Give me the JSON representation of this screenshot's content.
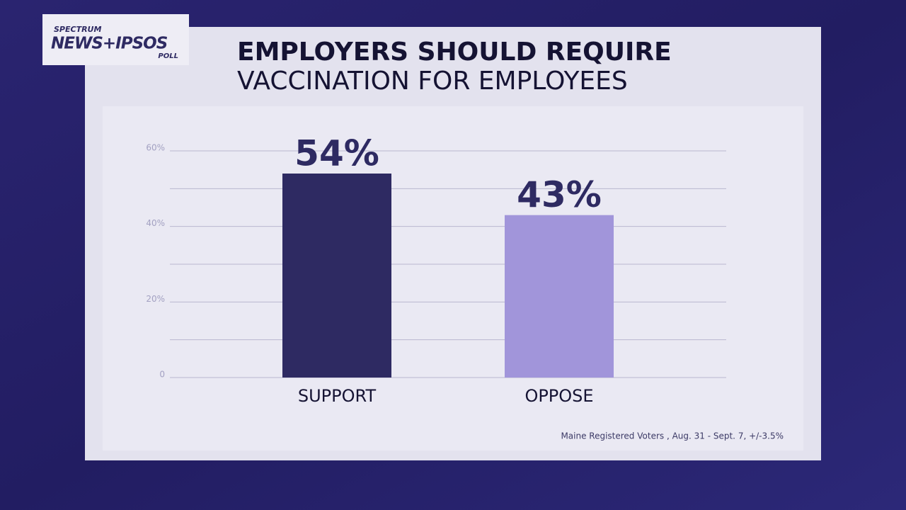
{
  "logo": {
    "top": "SPECTRUM",
    "main": "NEWS+IPSOS",
    "bottom": "POLL"
  },
  "chart_data": {
    "type": "bar",
    "title": "EMPLOYERS SHOULD REQUIRE",
    "subtitle": "VACCINATION FOR EMPLOYEES",
    "categories": [
      "SUPPORT",
      "OPPOSE"
    ],
    "values": [
      54,
      43
    ],
    "value_labels": [
      "54%",
      "43%"
    ],
    "colors": [
      "#2e2a62",
      "#a195da"
    ],
    "ylim": [
      0,
      60
    ],
    "yticks": [
      0,
      {
        "value": 10,
        "label": null
      },
      {
        "value": 20,
        "label": "20%"
      },
      {
        "value": 30,
        "label": null
      },
      {
        "value": 40,
        "label": "40%"
      },
      {
        "value": 50,
        "label": null
      },
      {
        "value": 60,
        "label": "60%"
      }
    ],
    "grid": true,
    "note": "Maine Registered Voters , Aug. 31 - Sept. 7, +/-3.5%"
  }
}
